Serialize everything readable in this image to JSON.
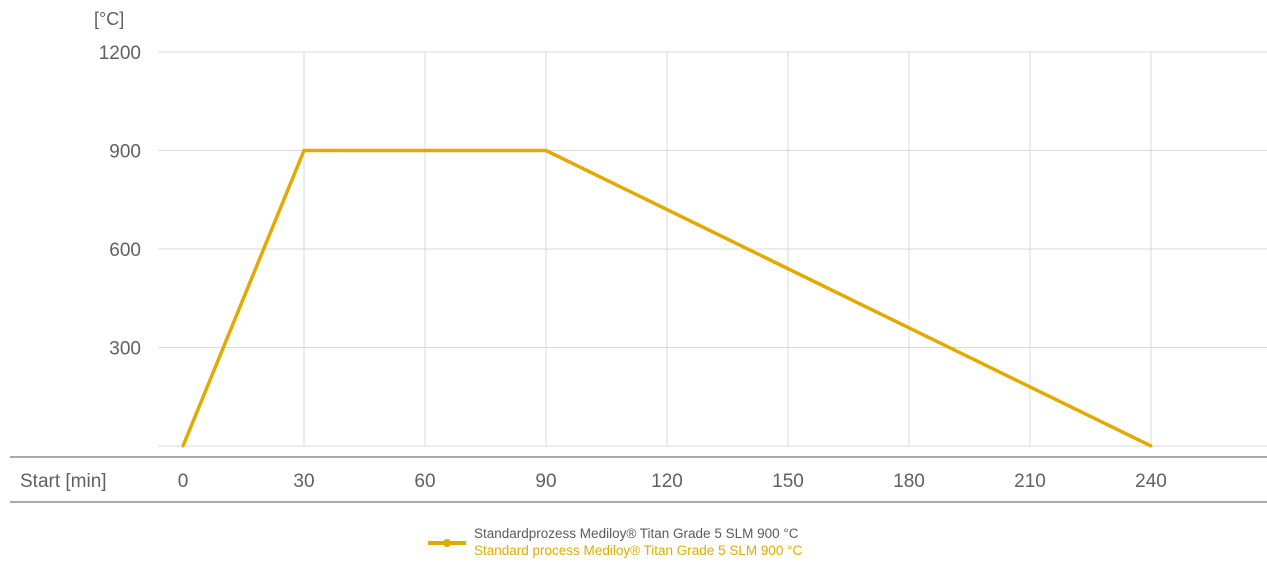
{
  "chart_data": {
    "type": "line",
    "y_unit_label": "[°C]",
    "x_axis_start_label": "Start [min]",
    "x_ticks": [
      0,
      30,
      60,
      90,
      120,
      150,
      180,
      210,
      240
    ],
    "y_ticks": [
      300,
      600,
      900,
      1200
    ],
    "xlim": [
      0,
      270
    ],
    "ylim": [
      0,
      1200
    ],
    "grid": true,
    "series": [
      {
        "name": "Standardprozess Mediloy® Titan Grade 5 SLM 900 °C",
        "name_en": "Standard process Mediloy® Titan Grade 5 SLM 900 °C",
        "color": "#e2aa00",
        "points": [
          {
            "x": 0,
            "y": 0
          },
          {
            "x": 30,
            "y": 900
          },
          {
            "x": 90,
            "y": 900
          },
          {
            "x": 240,
            "y": 0
          }
        ]
      }
    ],
    "legend_position": "bottom-center"
  },
  "colors": {
    "grid": "#d9d9d9",
    "axis": "#777777",
    "series": "#e2aa00"
  }
}
